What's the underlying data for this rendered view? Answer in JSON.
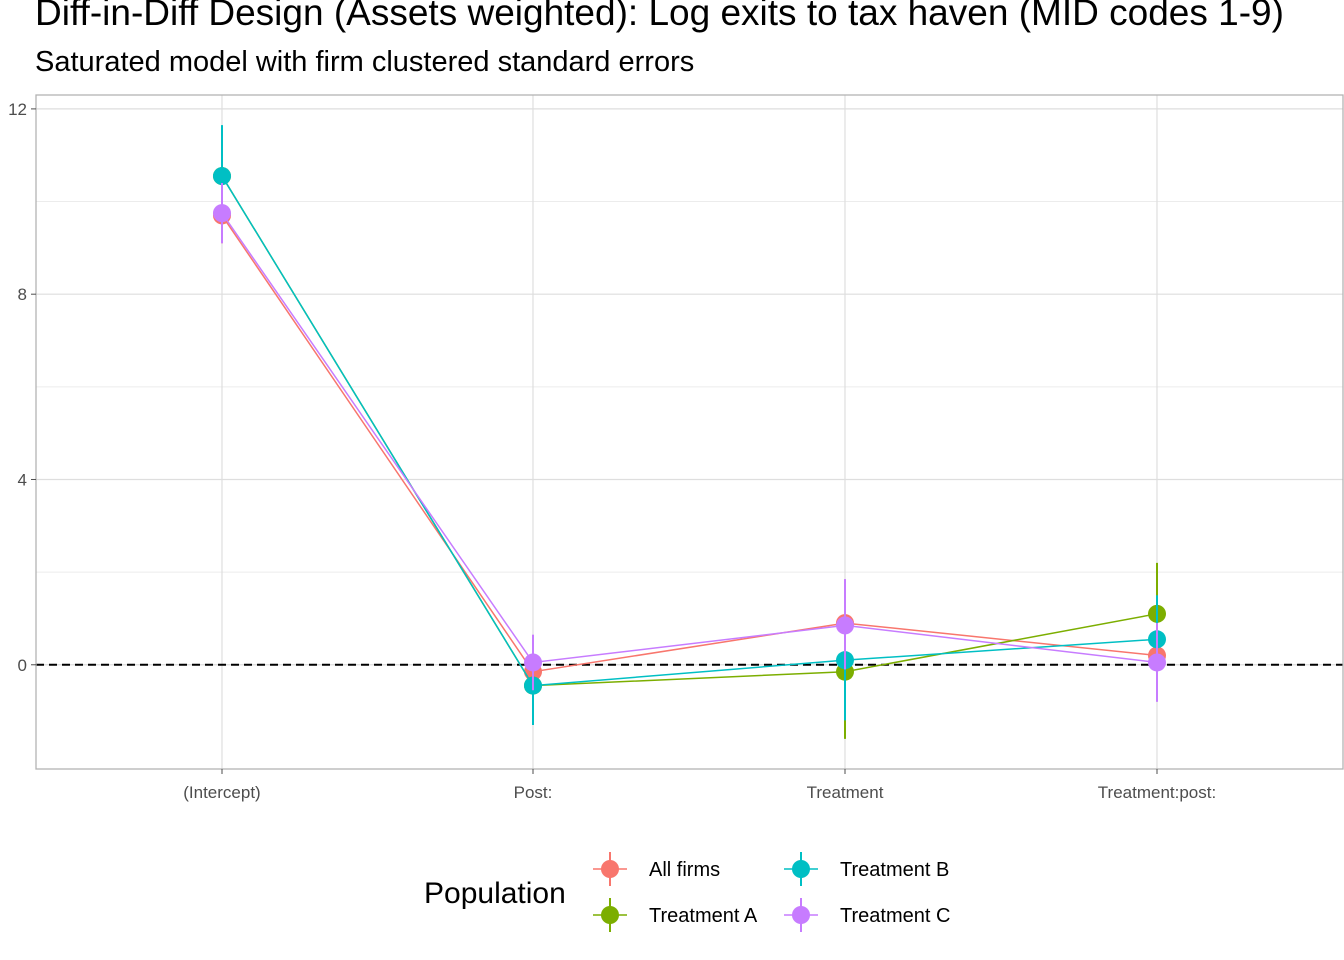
{
  "chart_data": {
    "type": "line",
    "title": "Diff-in-Diff Design (Assets weighted): Log exits to tax haven (MID codes 1-9)",
    "subtitle": "Saturated model with firm clustered standard errors",
    "categories": [
      "(Intercept)",
      "Post:",
      "Treatment",
      "Treatment:post:"
    ],
    "yticks": [
      0,
      4,
      8,
      12
    ],
    "ylim": [
      -2.25,
      12.3
    ],
    "reference_line": 0,
    "grid": true,
    "legend_title": "Population",
    "legend_position": "bottom",
    "series": [
      {
        "name": "All firms",
        "color": "#F8766D",
        "values": [
          9.7,
          -0.15,
          0.9,
          0.2
        ],
        "lower": [
          9.1,
          -0.6,
          0.3,
          -0.3
        ],
        "upper": [
          10.3,
          0.3,
          1.5,
          0.7
        ]
      },
      {
        "name": "Treatment A",
        "color": "#7CAE00",
        "values": [
          10.55,
          -0.45,
          -0.15,
          1.1
        ],
        "lower": [
          9.5,
          -1.3,
          -1.6,
          -0.05
        ],
        "upper": [
          11.6,
          0.4,
          1.3,
          2.2
        ]
      },
      {
        "name": "Treatment B",
        "color": "#00BFC4",
        "values": [
          10.55,
          -0.45,
          0.1,
          0.55
        ],
        "lower": [
          9.5,
          -1.3,
          -1.2,
          -0.4
        ],
        "upper": [
          11.65,
          0.4,
          1.4,
          1.5
        ]
      },
      {
        "name": "Treatment C",
        "color": "#C77CFF",
        "values": [
          9.75,
          0.05,
          0.85,
          0.05
        ],
        "lower": [
          9.1,
          -0.55,
          -0.1,
          -0.8
        ],
        "upper": [
          10.4,
          0.65,
          1.85,
          0.9
        ]
      }
    ]
  }
}
